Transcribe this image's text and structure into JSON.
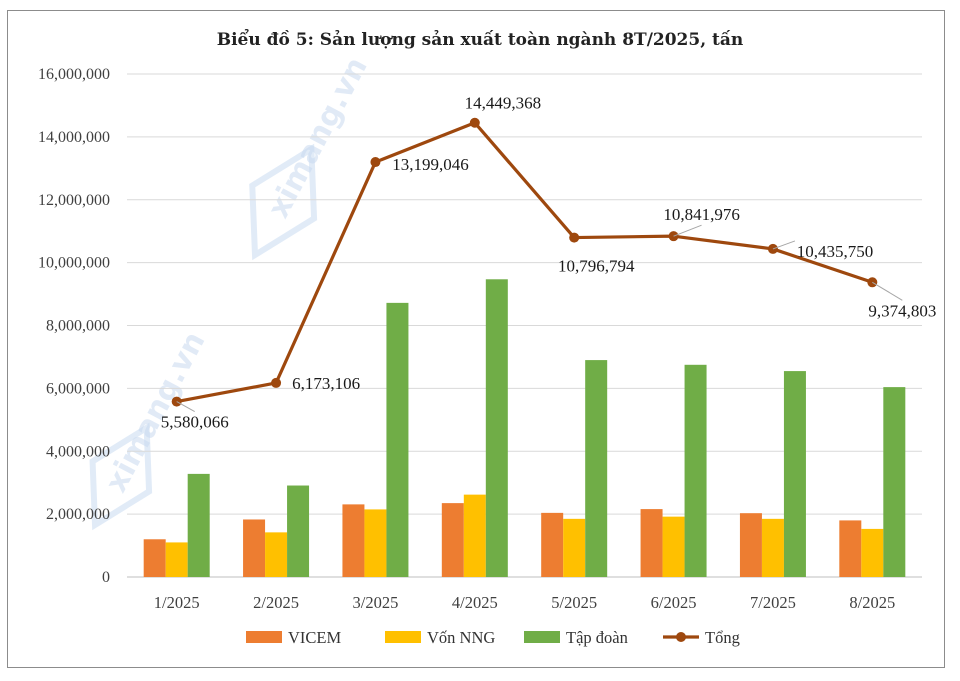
{
  "chart_data": {
    "type": "bar+line",
    "title": "Biểu đồ 5: Sản lượng sản xuất toàn ngành 8T/2025, tấn",
    "categories": [
      "1/2025",
      "2/2025",
      "3/2025",
      "4/2025",
      "5/2025",
      "6/2025",
      "7/2025",
      "8/2025"
    ],
    "ylim": [
      0,
      16000000
    ],
    "yticks": [
      "0",
      "2,000,000",
      "4,000,000",
      "6,000,000",
      "8,000,000",
      "10,000,000",
      "12,000,000",
      "14,000,000",
      "16,000,000"
    ],
    "series": [
      {
        "name": "VICEM",
        "kind": "bar",
        "color": "#ED7D31",
        "values": [
          1200000,
          1830000,
          2310000,
          2350000,
          2040000,
          2160000,
          2030000,
          1800000
        ]
      },
      {
        "name": "Vốn NNG",
        "kind": "bar",
        "color": "#FFC000",
        "values": [
          1100000,
          1420000,
          2150000,
          2620000,
          1850000,
          1920000,
          1850000,
          1530000
        ]
      },
      {
        "name": "Tập đoàn",
        "kind": "bar",
        "color": "#70AD47",
        "values": [
          3280000,
          2910000,
          8720000,
          9470000,
          6900000,
          6750000,
          6550000,
          6040000
        ]
      },
      {
        "name": "Tổng",
        "kind": "line",
        "color": "#9E480E",
        "values": [
          5580066,
          6173106,
          13199046,
          14449368,
          10796794,
          10841976,
          10435750,
          9374803
        ],
        "labels": [
          "5,580,066",
          "6,173,106",
          "13,199,046",
          "14,449,368",
          "10,796,794",
          "10,841,976",
          "10,435,750",
          "9,374,803"
        ]
      }
    ],
    "legend_position": "bottom",
    "grid": true
  },
  "watermark": "ximang.vn"
}
